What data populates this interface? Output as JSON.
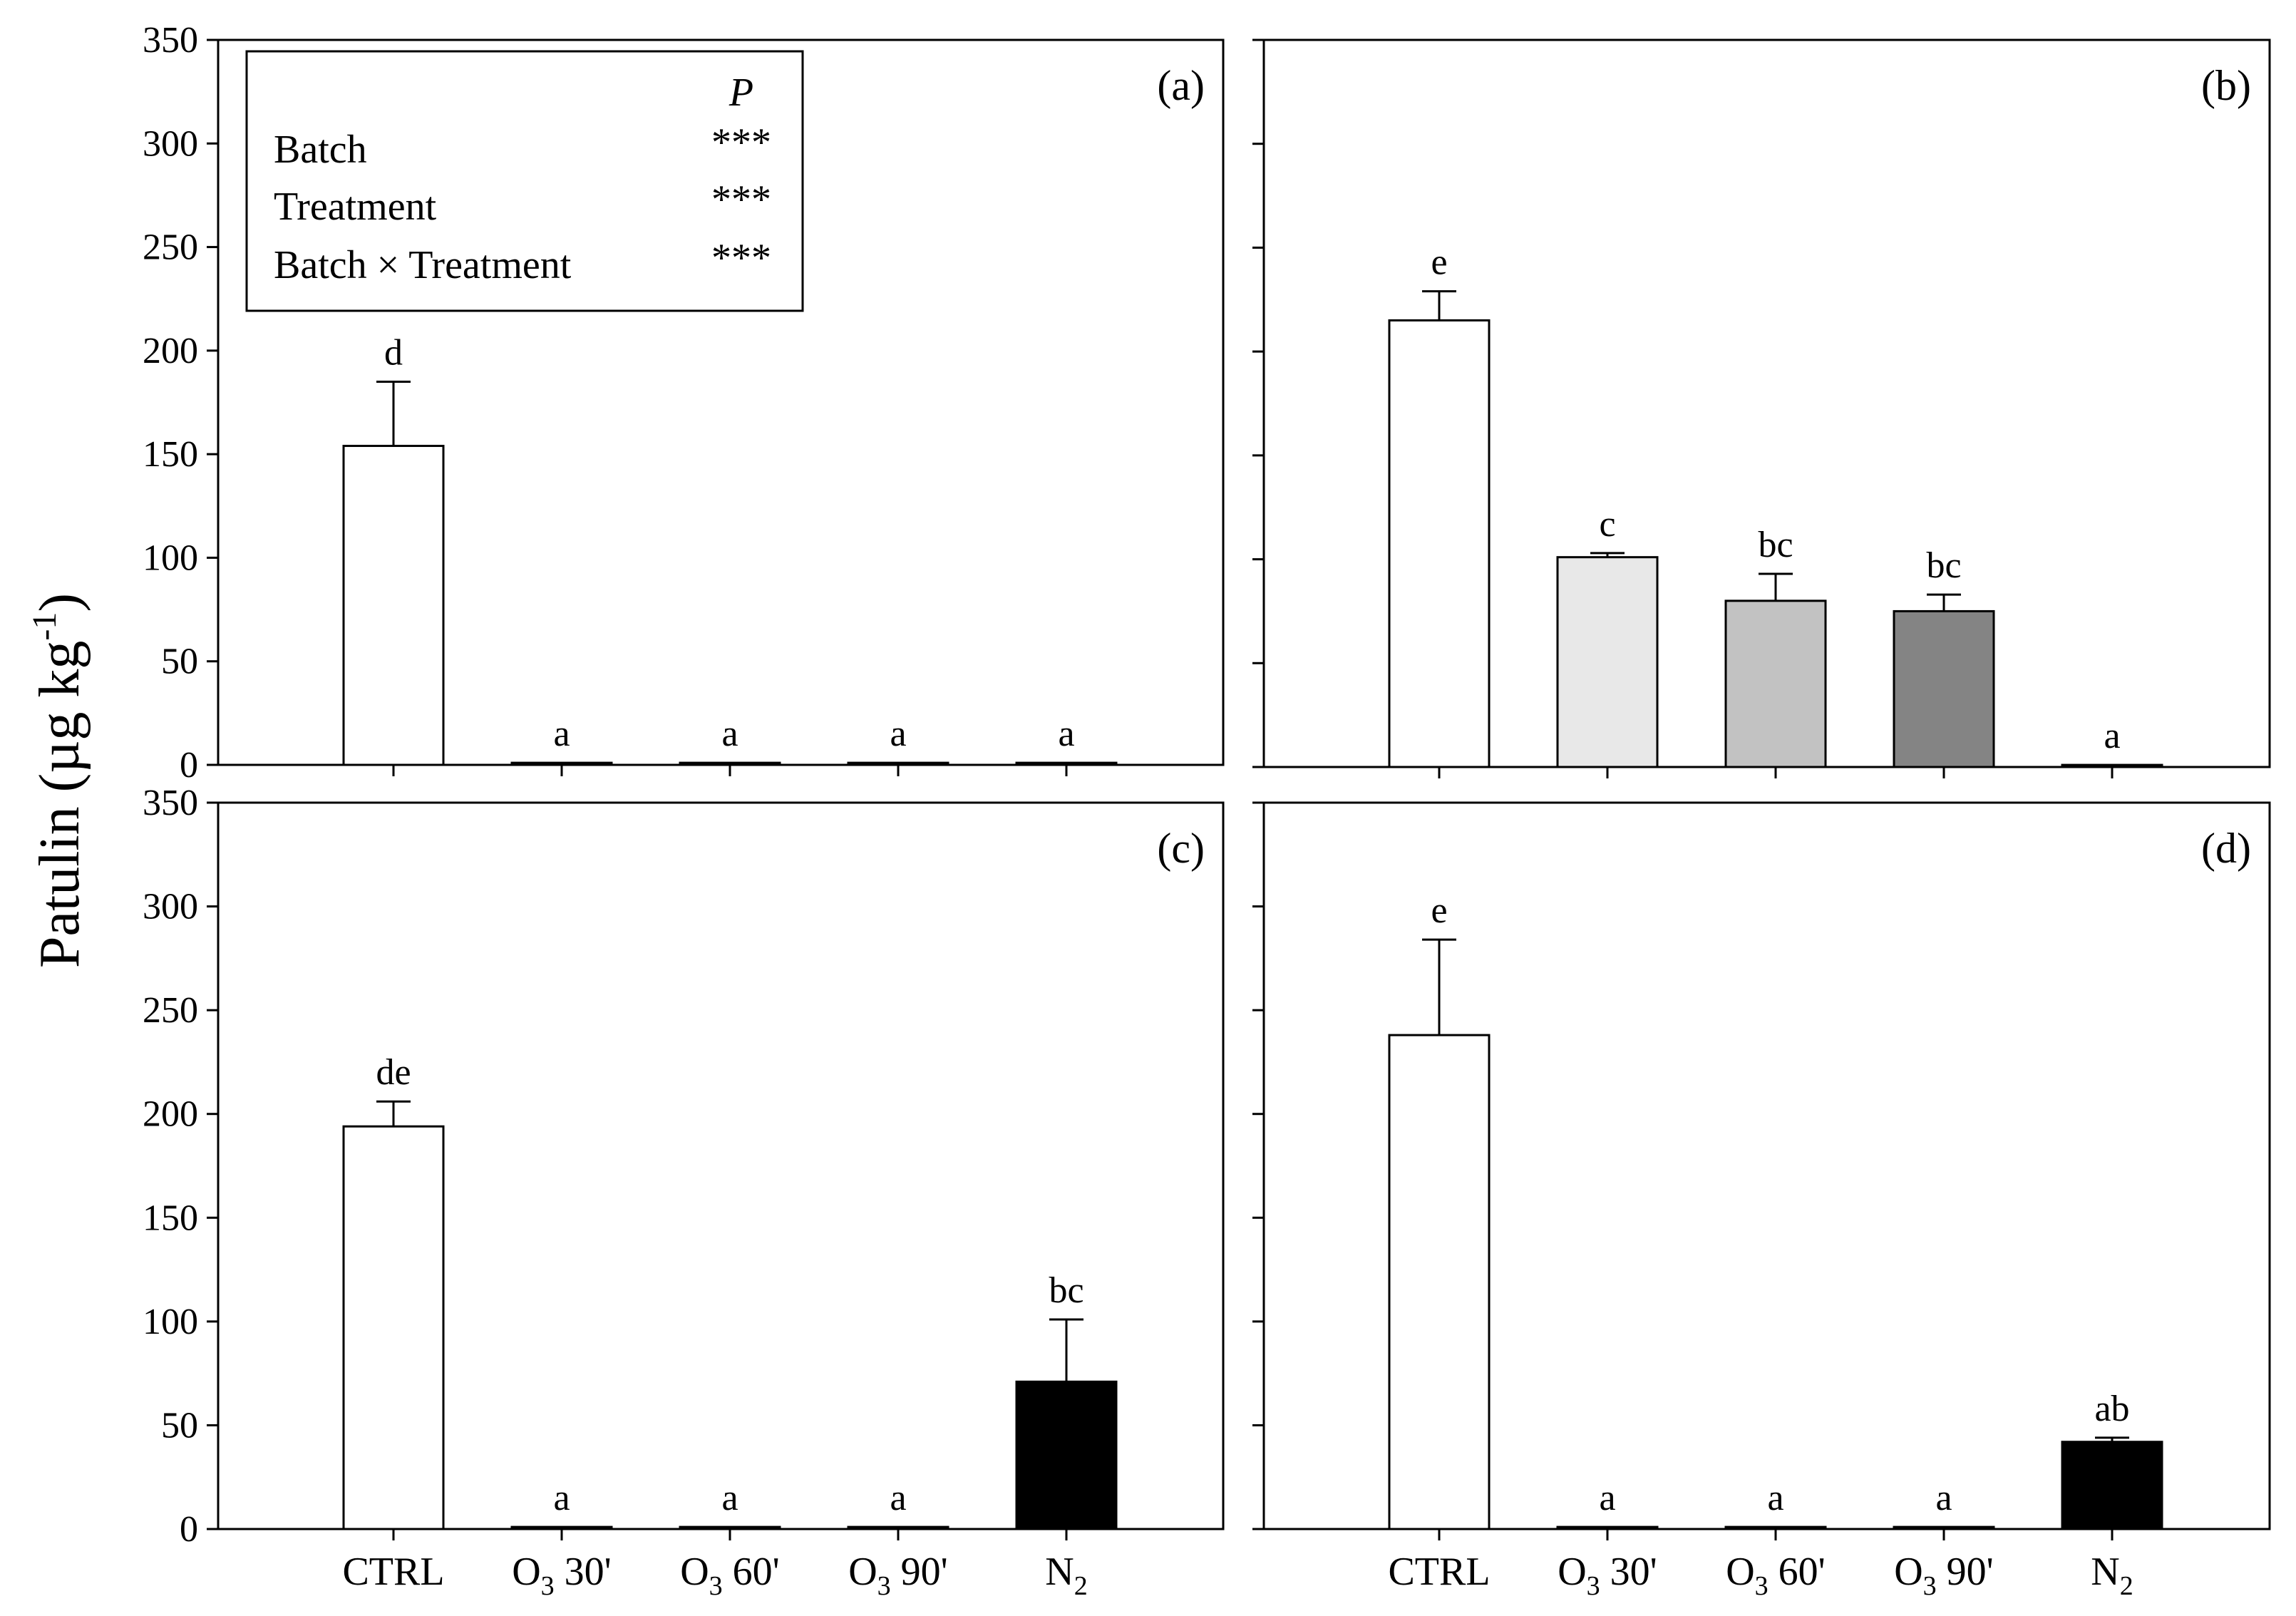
{
  "ylabel": {
    "main": "Patulin (µg kg",
    "sup": "-1",
    "close": ")"
  },
  "legend": {
    "header": "P",
    "rows": [
      {
        "label": "Batch",
        "sig": "***"
      },
      {
        "label": "Treatment",
        "sig": "***"
      },
      {
        "label": "Batch × Treatment",
        "sig": "***"
      }
    ]
  },
  "categories_display": [
    {
      "base": "CTRL",
      "sub": "",
      "suffix": ""
    },
    {
      "base": "O",
      "sub": "3",
      "suffix": "30'"
    },
    {
      "base": "O",
      "sub": "3",
      "suffix": "60'"
    },
    {
      "base": "O",
      "sub": "3",
      "suffix": "90'"
    },
    {
      "base": "N",
      "sub": "2",
      "suffix": ""
    }
  ],
  "colors": {
    "CTRL": "#ffffff",
    "O3 30'": "#e8e8e8",
    "O3 60'": "#c2c2c2",
    "O3 90'": "#848484",
    "N2": "#000000"
  },
  "chart_data": [
    {
      "type": "bar",
      "panel": "(a)",
      "categories": [
        "CTRL",
        "O3 30'",
        "O3 60'",
        "O3 90'",
        "N2"
      ],
      "values": [
        154,
        1,
        1,
        1,
        1
      ],
      "errors": [
        31,
        0,
        0,
        0,
        0
      ],
      "letters": [
        "d",
        "a",
        "a",
        "a",
        "a"
      ],
      "ylim": [
        0,
        350
      ],
      "yticks": [
        0,
        50,
        100,
        150,
        200,
        250,
        300,
        350
      ],
      "ytick_labels": [
        "0",
        "50",
        "100",
        "150",
        "200",
        "250",
        "300",
        "350"
      ],
      "ylabel": "Patulin (µg kg-1)"
    },
    {
      "type": "bar",
      "panel": "(b)",
      "categories": [
        "CTRL",
        "O3 30'",
        "O3 60'",
        "O3 90'",
        "N2"
      ],
      "values": [
        215,
        101,
        80,
        75,
        1
      ],
      "errors": [
        14,
        2,
        13,
        8,
        0
      ],
      "letters": [
        "e",
        "c",
        "bc",
        "bc",
        "a"
      ],
      "ylim": [
        0,
        350
      ],
      "yticks": [
        0,
        50,
        100,
        150,
        200,
        250,
        300,
        350
      ]
    },
    {
      "type": "bar",
      "panel": "(c)",
      "categories": [
        "CTRL",
        "O3 30'",
        "O3 60'",
        "O3 90'",
        "N2"
      ],
      "values": [
        194,
        1,
        1,
        1,
        71
      ],
      "errors": [
        12,
        0,
        0,
        0,
        30
      ],
      "letters": [
        "de",
        "a",
        "a",
        "a",
        "bc"
      ],
      "ylim": [
        0,
        350
      ],
      "yticks": [
        0,
        50,
        100,
        150,
        200,
        250,
        300,
        350
      ],
      "ytick_labels": [
        "0",
        "50",
        "100",
        "150",
        "200",
        "250",
        "300",
        "350"
      ]
    },
    {
      "type": "bar",
      "panel": "(d)",
      "categories": [
        "CTRL",
        "O3 30'",
        "O3 60'",
        "O3 90'",
        "N2"
      ],
      "values": [
        238,
        1,
        1,
        1,
        42
      ],
      "errors": [
        46,
        0,
        0,
        0,
        2
      ],
      "letters": [
        "e",
        "a",
        "a",
        "a",
        "ab"
      ],
      "ylim": [
        0,
        350
      ],
      "yticks": [
        0,
        50,
        100,
        150,
        200,
        250,
        300,
        350
      ]
    }
  ]
}
